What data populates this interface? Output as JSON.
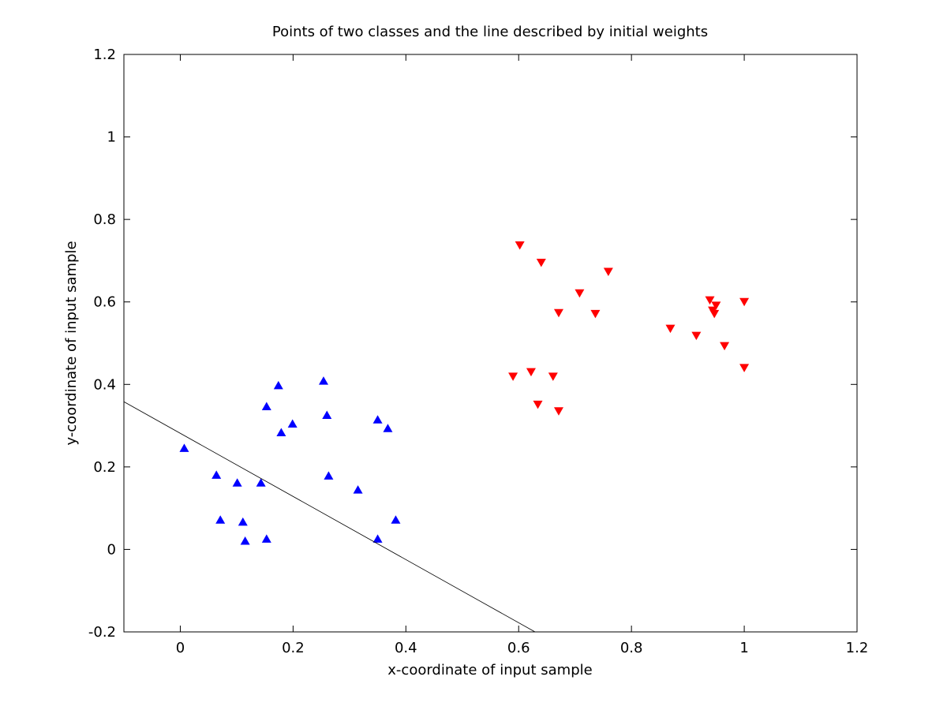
{
  "chart_data": {
    "type": "scatter",
    "title": "Points of two classes and the line described by initial weights",
    "xlabel": "x-coordinate of input sample",
    "ylabel": "y-coordinate of input sample",
    "xlim": [
      -0.1,
      1.2
    ],
    "ylim": [
      -0.2,
      1.2
    ],
    "xticks": [
      0,
      0.2,
      0.4,
      0.6,
      0.8,
      1,
      1.2
    ],
    "yticks": [
      -0.2,
      0,
      0.2,
      0.4,
      0.6,
      0.8,
      1,
      1.2
    ],
    "grid": false,
    "series": [
      {
        "marker": "triangle-up",
        "color": "#0000ff",
        "points": [
          [
            0.007,
            0.245
          ],
          [
            0.064,
            0.18
          ],
          [
            0.071,
            0.071
          ],
          [
            0.101,
            0.161
          ],
          [
            0.111,
            0.066
          ],
          [
            0.115,
            0.02
          ],
          [
            0.143,
            0.161
          ],
          [
            0.153,
            0.346
          ],
          [
            0.153,
            0.025
          ],
          [
            0.174,
            0.397
          ],
          [
            0.179,
            0.283
          ],
          [
            0.199,
            0.304
          ],
          [
            0.254,
            0.408
          ],
          [
            0.26,
            0.325
          ],
          [
            0.263,
            0.178
          ],
          [
            0.315,
            0.144
          ],
          [
            0.35,
            0.314
          ],
          [
            0.35,
            0.025
          ],
          [
            0.368,
            0.293
          ],
          [
            0.382,
            0.071
          ]
        ]
      },
      {
        "marker": "triangle-down",
        "color": "#ff0000",
        "points": [
          [
            0.59,
            0.42
          ],
          [
            0.602,
            0.738
          ],
          [
            0.622,
            0.431
          ],
          [
            0.634,
            0.352
          ],
          [
            0.64,
            0.696
          ],
          [
            0.661,
            0.42
          ],
          [
            0.671,
            0.574
          ],
          [
            0.671,
            0.336
          ],
          [
            0.708,
            0.622
          ],
          [
            0.736,
            0.572
          ],
          [
            0.759,
            0.674
          ],
          [
            0.869,
            0.536
          ],
          [
            0.915,
            0.519
          ],
          [
            0.939,
            0.605
          ],
          [
            0.944,
            0.58
          ],
          [
            0.947,
            0.572
          ],
          [
            0.95,
            0.592
          ],
          [
            0.965,
            0.494
          ],
          [
            1.0,
            0.601
          ],
          [
            1.0,
            0.441
          ]
        ]
      },
      {
        "type": "line",
        "color": "#000000",
        "points": [
          [
            -0.1,
            0.358
          ],
          [
            0.629,
            -0.2
          ]
        ]
      }
    ]
  }
}
